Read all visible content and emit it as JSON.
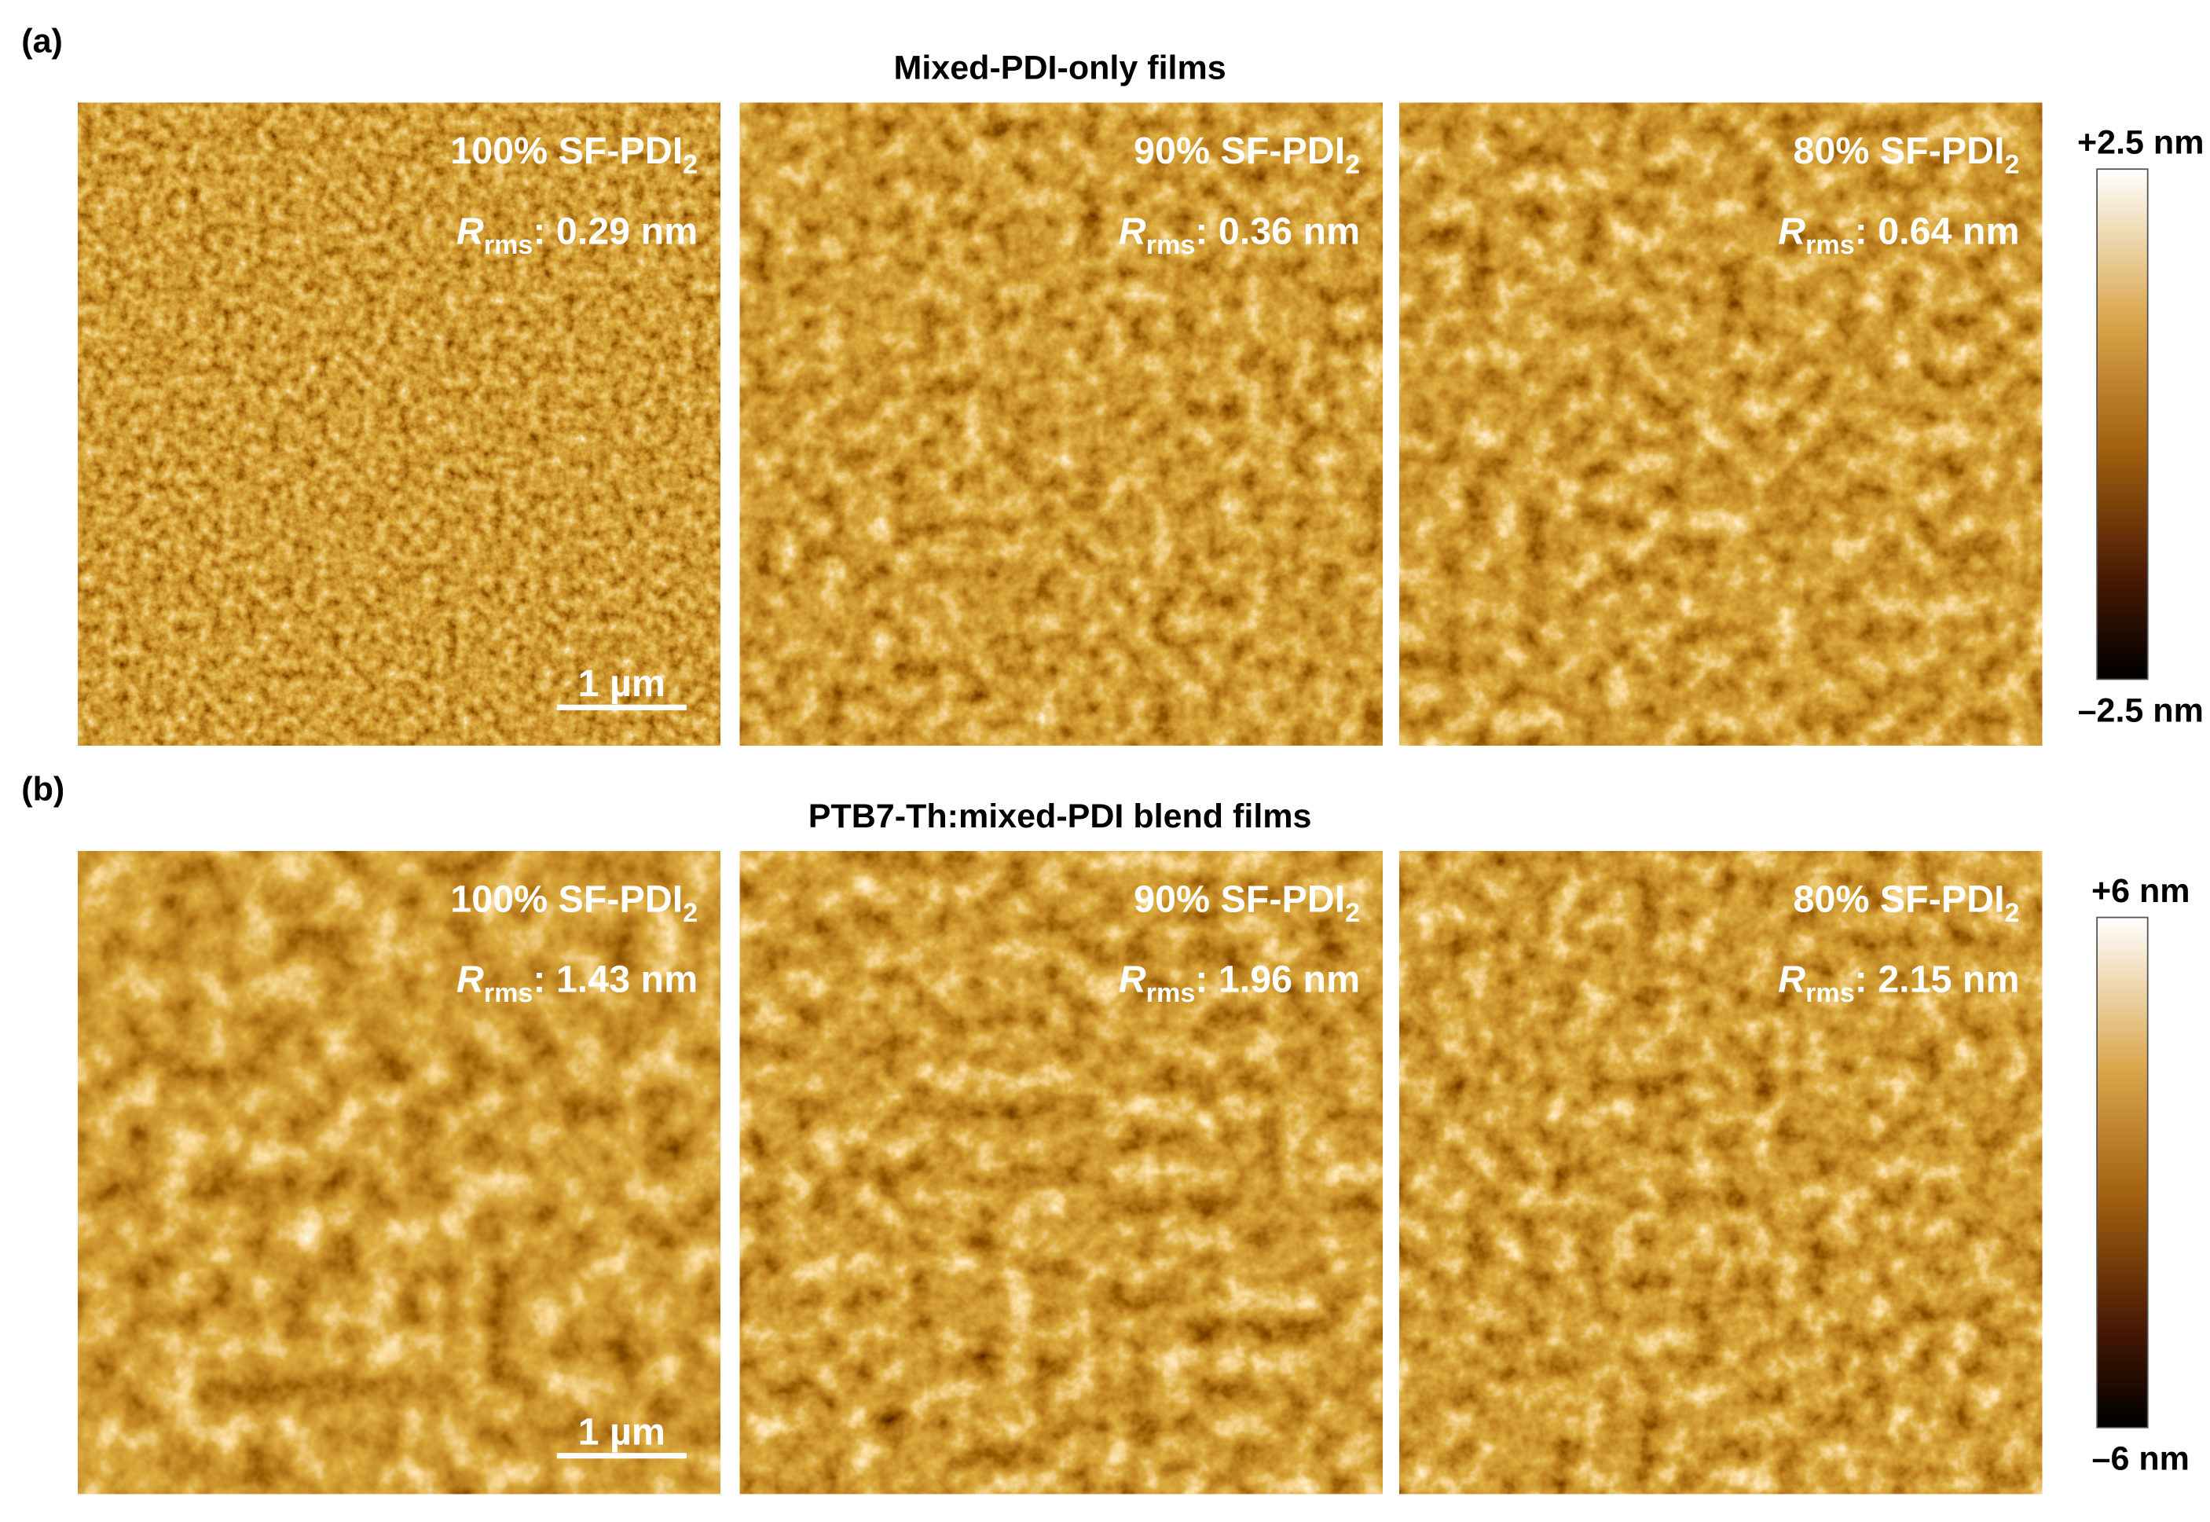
{
  "panels": [
    {
      "label": "(a)",
      "title": "Mixed-PDI-only films",
      "images": [
        {
          "composition": "100% SF-PDI",
          "composition_sub": "2",
          "rms_symbol": "R",
          "rms_sub": "rms",
          "rms_value": ": 0.29 nm"
        },
        {
          "composition": "90% SF-PDI",
          "composition_sub": "2",
          "rms_symbol": "R",
          "rms_sub": "rms",
          "rms_value": ": 0.36 nm"
        },
        {
          "composition": "80% SF-PDI",
          "composition_sub": "2",
          "rms_symbol": "R",
          "rms_sub": "rms",
          "rms_value": ": 0.64 nm"
        }
      ],
      "scale_bar": "1 µm",
      "colorbar": {
        "max": "+2.5 nm",
        "min": "–2.5 nm"
      }
    },
    {
      "label": "(b)",
      "title": "PTB7-Th:mixed-PDI blend films",
      "images": [
        {
          "composition": "100% SF-PDI",
          "composition_sub": "2",
          "rms_symbol": "R",
          "rms_sub": "rms",
          "rms_value": ": 1.43 nm"
        },
        {
          "composition": "90% SF-PDI",
          "composition_sub": "2",
          "rms_symbol": "R",
          "rms_sub": "rms",
          "rms_value": ": 1.96 nm"
        },
        {
          "composition": "80% SF-PDI",
          "composition_sub": "2",
          "rms_symbol": "R",
          "rms_sub": "rms",
          "rms_value": ": 2.15 nm"
        }
      ],
      "scale_bar": "1 µm",
      "colorbar": {
        "max": "+6 nm",
        "min": "–6 nm"
      }
    }
  ]
}
